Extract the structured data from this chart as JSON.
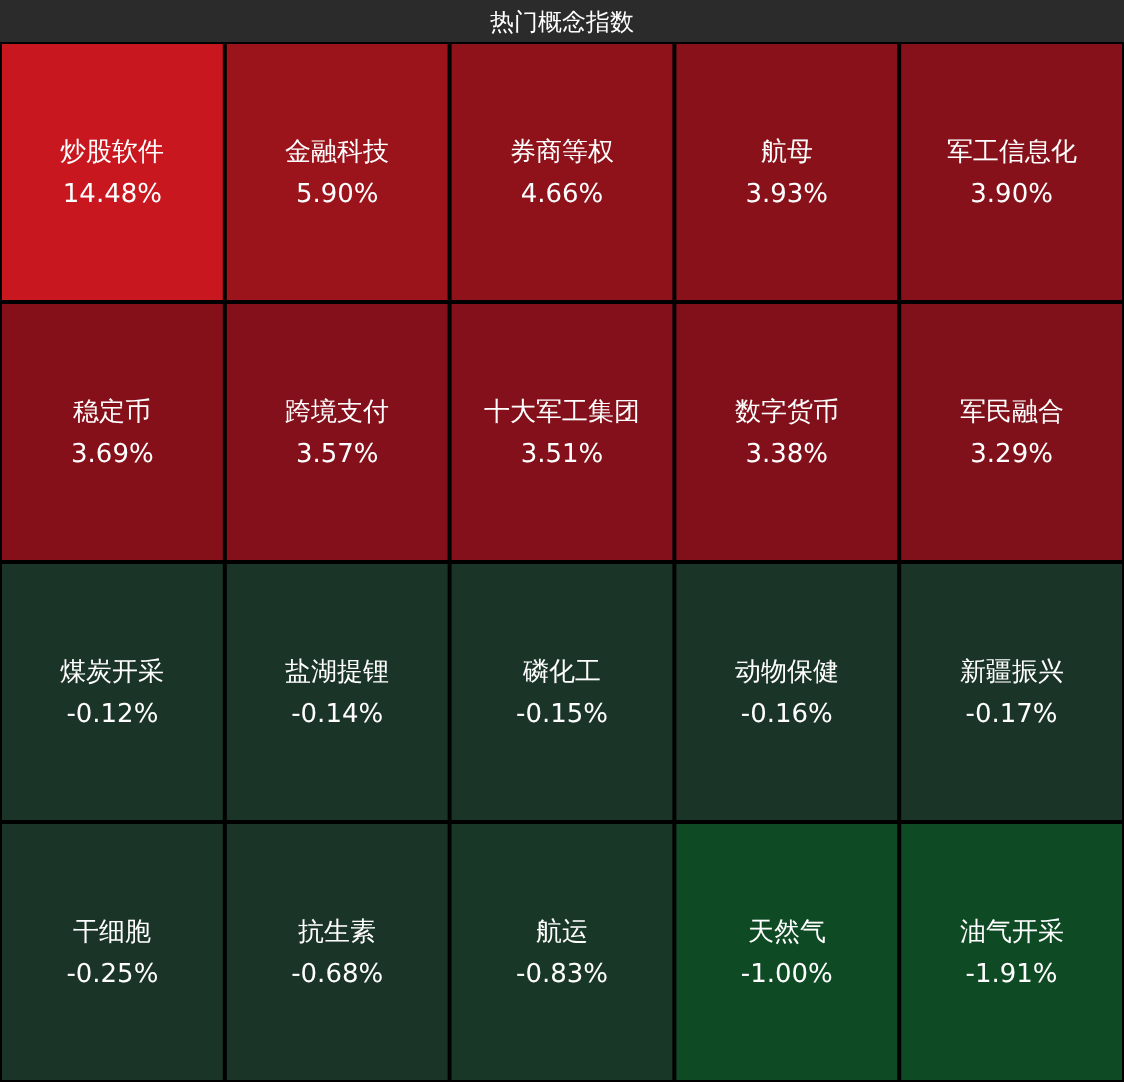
{
  "chart_data": {
    "type": "other",
    "title": "热门概念指数",
    "categories": [
      "炒股软件",
      "金融科技",
      "券商等权",
      "航母",
      "军工信息化",
      "稳定币",
      "跨境支付",
      "十大军工集团",
      "数字货币",
      "军民融合",
      "煤炭开采",
      "盐湖提锂",
      "磷化工",
      "动物保健",
      "新疆振兴",
      "干细胞",
      "抗生素",
      "航运",
      "天然气",
      "油气开采"
    ],
    "values": [
      14.48,
      5.9,
      4.66,
      3.93,
      3.9,
      3.69,
      3.57,
      3.51,
      3.38,
      3.29,
      -0.12,
      -0.14,
      -0.15,
      -0.16,
      -0.17,
      -0.25,
      -0.68,
      -0.83,
      -1.0,
      -1.91
    ],
    "value_labels": [
      "14.48%",
      "5.90%",
      "4.66%",
      "3.93%",
      "3.90%",
      "3.69%",
      "3.57%",
      "3.51%",
      "3.38%",
      "3.29%",
      "-0.12%",
      "-0.14%",
      "-0.15%",
      "-0.16%",
      "-0.17%",
      "-0.25%",
      "-0.68%",
      "-0.83%",
      "-1.00%",
      "-1.91%"
    ]
  }
}
